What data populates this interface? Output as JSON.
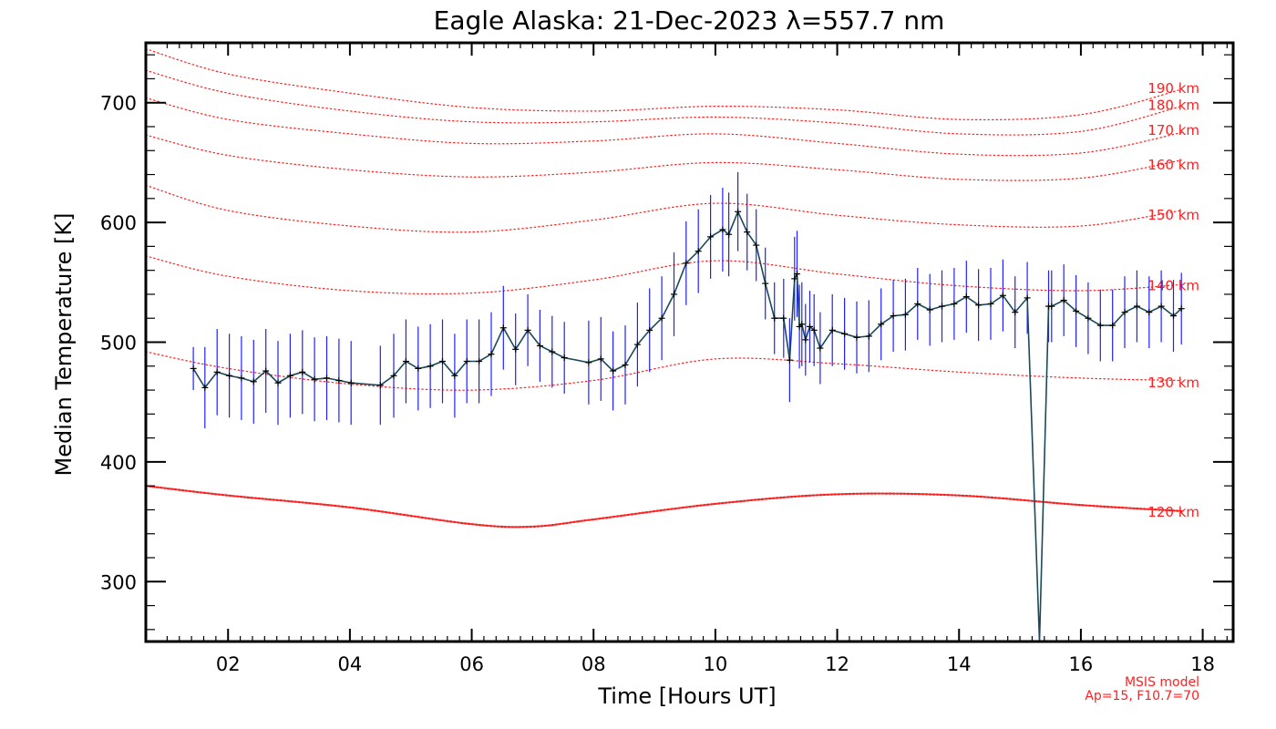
{
  "chart_data": {
    "type": "line",
    "title": "Eagle Alaska: 21-Dec-2023 λ=557.7 nm",
    "xlabel": "Time [Hours UT]",
    "ylabel": "Median Temperature [K]",
    "xlim": [
      0.65,
      18.5
    ],
    "ylim": [
      250,
      750
    ],
    "x_ticks": [
      "02",
      "04",
      "06",
      "08",
      "10",
      "12",
      "14",
      "16",
      "18"
    ],
    "x_tick_values": [
      2,
      4,
      6,
      8,
      10,
      12,
      14,
      16,
      18
    ],
    "y_ticks": [
      "300",
      "400",
      "500",
      "600",
      "700"
    ],
    "y_tick_values": [
      300,
      400,
      500,
      600,
      700
    ],
    "measured": {
      "name": "Median temperature",
      "color": "#1a4a5a",
      "errorbar_color": "#2020ff",
      "x": [
        1.43,
        1.62,
        1.82,
        2.02,
        2.22,
        2.42,
        2.62,
        2.82,
        3.02,
        3.22,
        3.42,
        3.62,
        3.82,
        4.02,
        4.5,
        4.72,
        4.92,
        5.12,
        5.32,
        5.52,
        5.72,
        5.92,
        6.12,
        6.32,
        6.52,
        6.72,
        6.92,
        7.12,
        7.32,
        7.52,
        7.92,
        8.12,
        8.32,
        8.52,
        8.72,
        8.92,
        9.12,
        9.32,
        9.52,
        9.72,
        9.92,
        10.12,
        10.22,
        10.37,
        10.52,
        10.67,
        10.82,
        10.97,
        11.12,
        11.22,
        11.3,
        11.34,
        11.38,
        11.42,
        11.48,
        11.55,
        11.62,
        11.72,
        11.92,
        12.12,
        12.32,
        12.52,
        12.72,
        12.92,
        13.12,
        13.32,
        13.52,
        13.72,
        13.92,
        14.12,
        14.32,
        14.52,
        14.72,
        14.92,
        15.12,
        15.32,
        15.47,
        15.52,
        15.72,
        15.92,
        16.12,
        16.32,
        16.52,
        16.72,
        16.92,
        17.12,
        17.32,
        17.52,
        17.65
      ],
      "y": [
        478,
        462,
        475,
        472,
        470,
        467,
        476,
        466,
        472,
        475,
        469,
        470,
        468,
        466,
        464,
        472,
        484,
        478,
        480,
        484,
        472,
        484,
        484,
        490,
        512,
        494,
        510,
        497,
        492,
        487,
        483,
        486,
        476,
        481,
        498,
        510,
        520,
        540,
        566,
        576,
        588,
        594,
        590,
        609,
        592,
        581,
        549,
        520,
        520,
        485,
        553,
        557,
        513,
        515,
        502,
        513,
        510,
        495,
        510,
        507,
        504,
        505,
        515,
        522,
        523,
        532,
        527,
        530,
        532,
        538,
        531,
        532,
        539,
        525,
        537,
        250,
        530,
        530,
        535,
        526,
        520,
        514,
        514,
        525,
        530,
        525,
        530,
        522,
        528
      ],
      "errors": [
        18,
        34,
        36,
        35,
        35,
        35,
        35,
        35,
        35,
        35,
        35,
        35,
        35,
        35,
        33,
        35,
        35,
        35,
        35,
        35,
        35,
        35,
        35,
        35,
        35,
        30,
        30,
        30,
        30,
        30,
        35,
        35,
        33,
        33,
        35,
        35,
        35,
        35,
        35,
        35,
        35,
        35,
        35,
        33,
        32,
        30,
        30,
        30,
        33,
        35,
        35,
        36,
        35,
        35,
        30,
        30,
        30,
        30,
        30,
        30,
        30,
        30,
        30,
        30,
        30,
        30,
        30,
        30,
        30,
        30,
        30,
        30,
        30,
        30,
        30,
        30,
        30,
        30,
        30,
        30,
        30,
        30,
        30,
        30,
        30,
        30,
        30,
        30,
        30
      ]
    },
    "model_curves": [
      {
        "label": "120 km",
        "x": [
          0.65,
          2,
          4,
          6,
          7,
          8,
          10,
          12,
          14,
          16,
          17.65
        ],
        "y": [
          380,
          372,
          362,
          348,
          346,
          352,
          365,
          373,
          372,
          364,
          359
        ]
      },
      {
        "label": "130 km",
        "x": [
          0.65,
          2,
          4,
          6,
          8,
          10,
          12,
          14,
          16,
          17.65
        ],
        "y": [
          492,
          478,
          465,
          460,
          468,
          486,
          482,
          475,
          470,
          468
        ]
      },
      {
        "label": "140 km",
        "x": [
          0.65,
          2,
          4,
          6,
          8,
          10,
          12,
          14,
          16,
          17.65
        ],
        "y": [
          572,
          555,
          543,
          541,
          552,
          568,
          557,
          547,
          543,
          548
        ]
      },
      {
        "label": "150 km",
        "x": [
          0.65,
          2,
          4,
          6,
          8,
          10,
          12,
          14,
          16,
          17.65
        ],
        "y": [
          631,
          610,
          597,
          592,
          602,
          616,
          606,
          598,
          597,
          610
        ]
      },
      {
        "label": "160 km",
        "x": [
          0.65,
          2,
          4,
          6,
          8,
          10,
          12,
          14,
          16,
          17.65
        ],
        "y": [
          673,
          656,
          644,
          638,
          642,
          650,
          644,
          636,
          637,
          652
        ]
      },
      {
        "label": "170 km",
        "x": [
          0.65,
          2,
          4,
          6,
          8,
          10,
          12,
          14,
          16,
          17.65
        ],
        "y": [
          704,
          686,
          674,
          666,
          668,
          674,
          666,
          657,
          658,
          675
        ]
      },
      {
        "label": "180 km",
        "x": [
          0.65,
          2,
          4,
          6,
          8,
          10,
          12,
          14,
          16,
          17.65
        ],
        "y": [
          727,
          708,
          693,
          684,
          684,
          688,
          683,
          674,
          676,
          697
        ]
      },
      {
        "label": "190 km",
        "x": [
          0.65,
          2,
          4,
          6,
          8,
          10,
          12,
          14,
          16,
          17.65
        ],
        "y": [
          745,
          724,
          708,
          696,
          693,
          697,
          694,
          686,
          690,
          711
        ]
      }
    ],
    "altitude_labels": [
      {
        "label": "120 km",
        "y": 358
      },
      {
        "label": "130 km",
        "y": 466
      },
      {
        "label": "140 km",
        "y": 547
      },
      {
        "label": "150 km",
        "y": 606
      },
      {
        "label": "160 km",
        "y": 648
      },
      {
        "label": "170 km",
        "y": 677
      },
      {
        "label": "180 km",
        "y": 698
      },
      {
        "label": "190 km",
        "y": 712
      }
    ],
    "model_color": "#ff2020",
    "note_line1": "MSIS model",
    "note_line2": "Ap=15, F10.7=70"
  }
}
